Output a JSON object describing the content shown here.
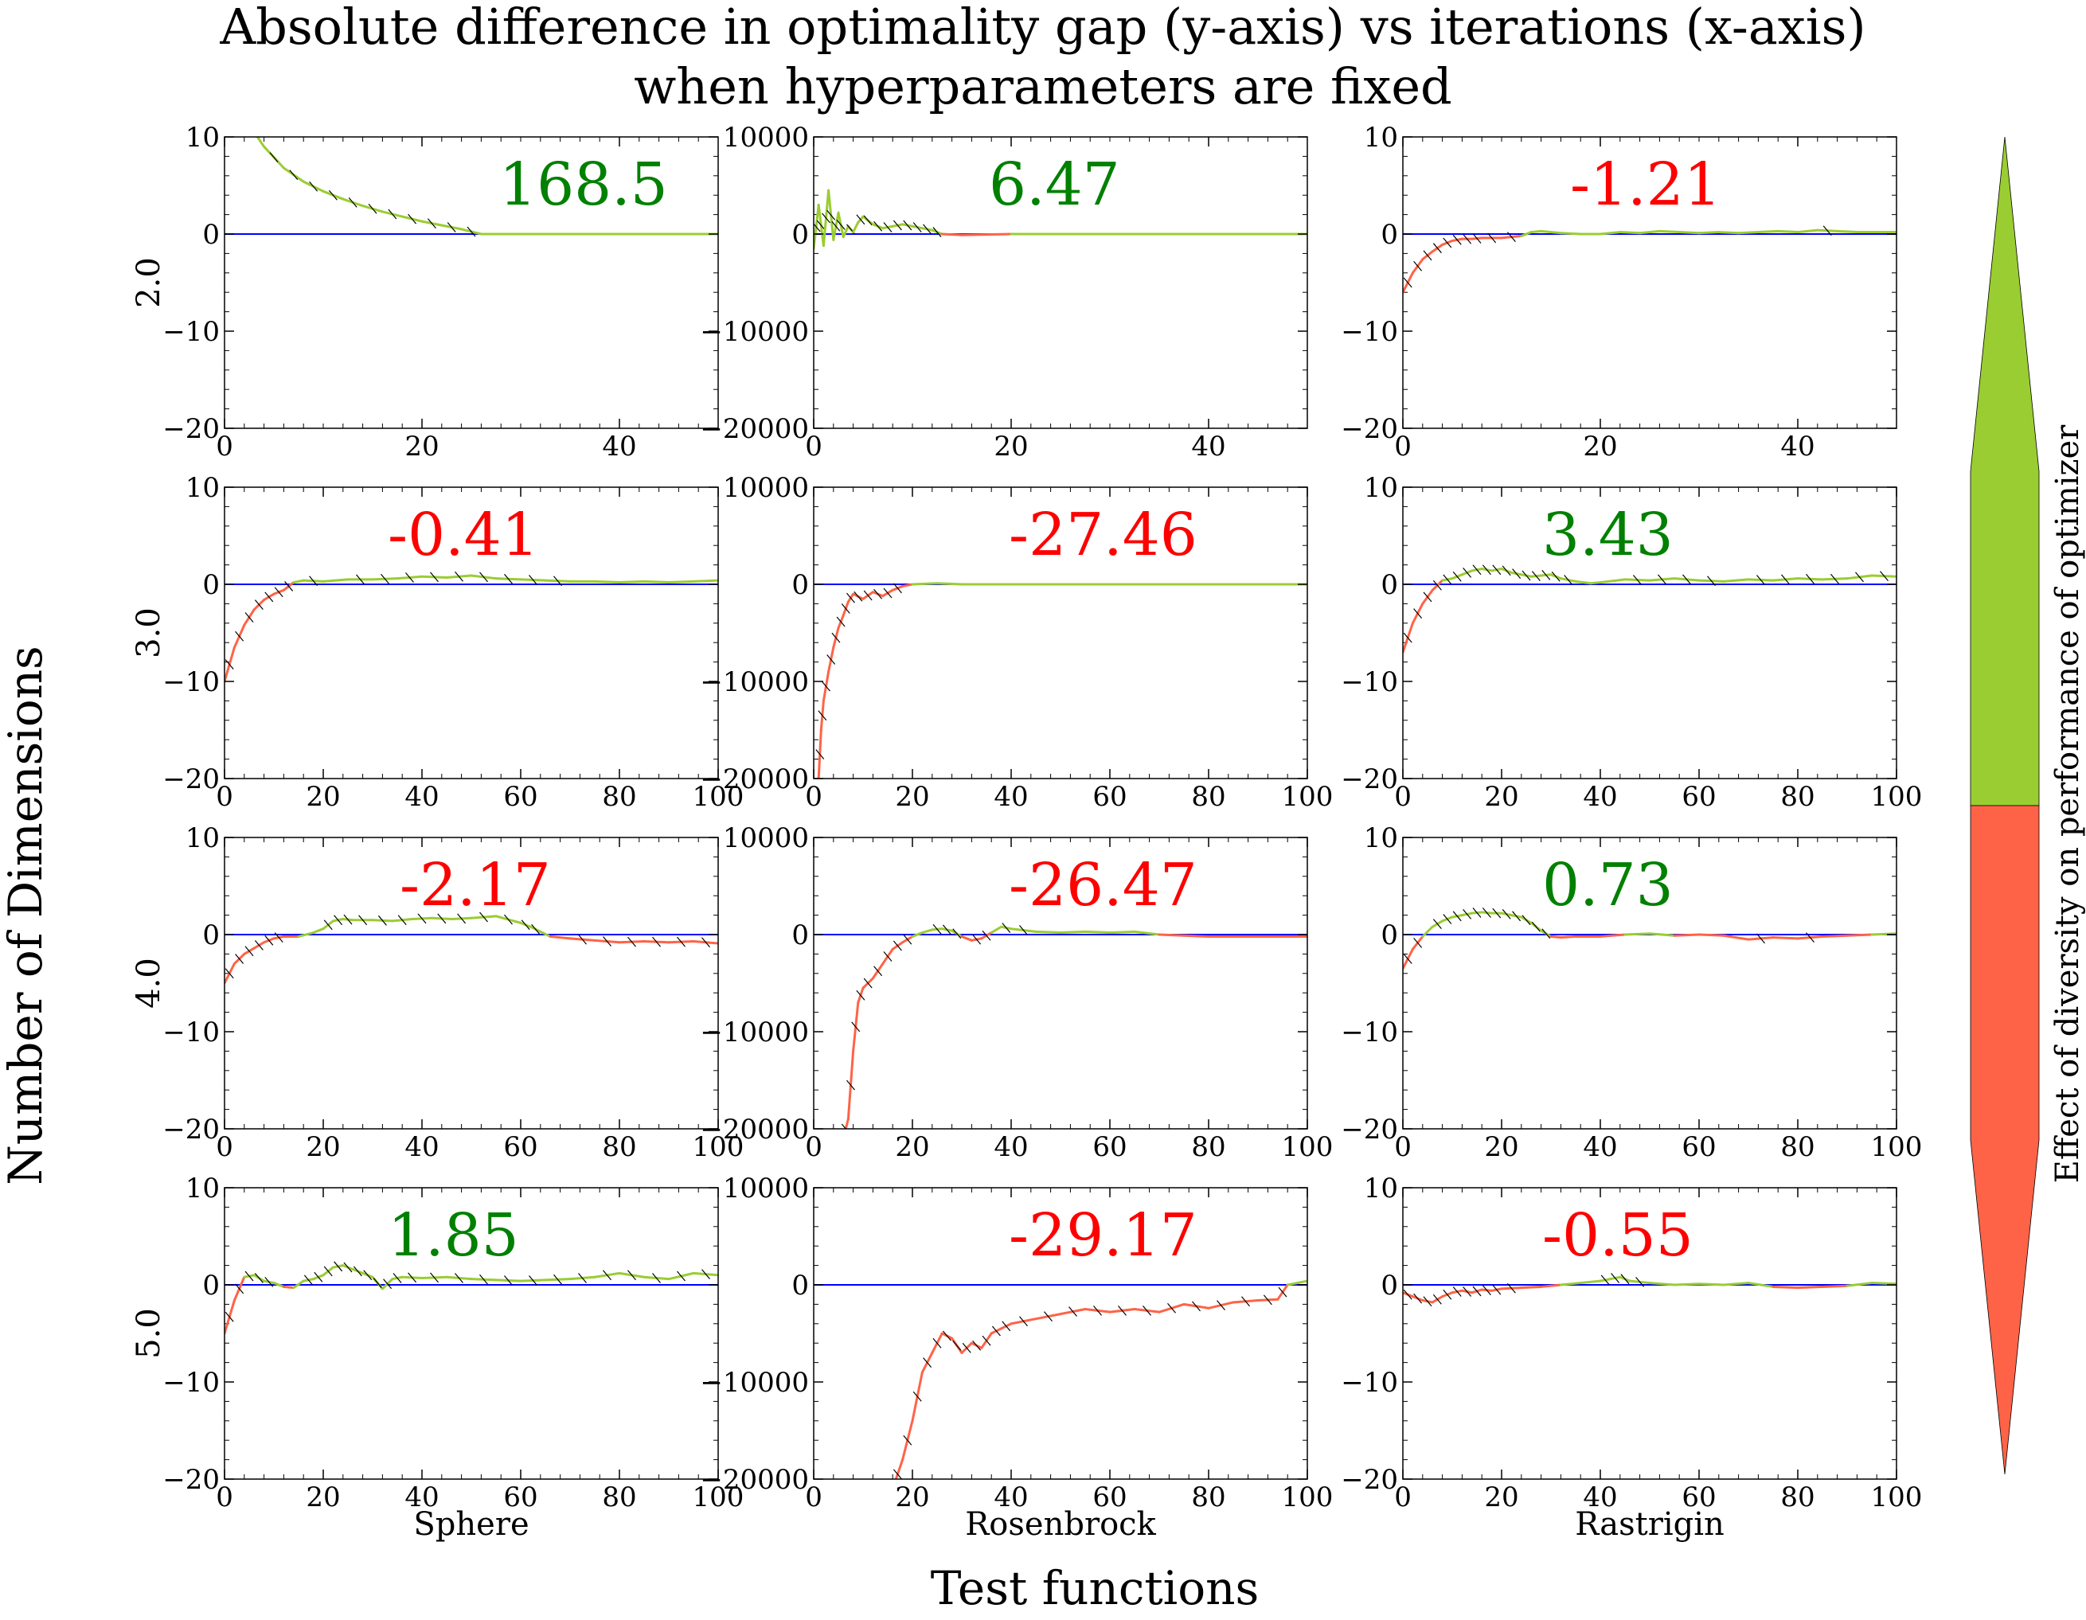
{
  "title_lines": [
    "Absolute difference in optimality gap (y-axis) vs iterations (x-axis)",
    "when hyperparameters are fixed"
  ],
  "xlabel": "Test functions",
  "ylabel": "Number of Dimensions",
  "colorbar_label": "Effect of diversity on performance of optimizer",
  "colors": {
    "positive": "#9ACD32",
    "negative": "#FF6347",
    "zero_line": "#0000FF",
    "positive_text": "#008000",
    "negative_text": "#FF0000",
    "hatch": "#000000"
  },
  "chart_data": {
    "type": "line",
    "layout": "grid 4 rows x 3 columns",
    "columns": [
      "Sphere",
      "Rosenbrock",
      "Rastrigin"
    ],
    "rows": [
      "2.0",
      "3.0",
      "4.0",
      "5.0"
    ],
    "panels": [
      {
        "row": 0,
        "col": 0,
        "value": "168.5",
        "sign": "positive",
        "xlim": [
          0,
          50
        ],
        "ylim": [
          -20,
          10
        ],
        "xticks": [
          0,
          20,
          40
        ],
        "yticks": [
          -20,
          -10,
          0,
          10
        ],
        "x": [
          0,
          2,
          4,
          6,
          8,
          10,
          12,
          14,
          16,
          18,
          20,
          22,
          24,
          26,
          50
        ],
        "y": [
          15,
          12,
          9,
          6.8,
          5.4,
          4.4,
          3.6,
          2.9,
          2.3,
          1.8,
          1.3,
          0.9,
          0.5,
          0,
          0
        ]
      },
      {
        "row": 0,
        "col": 1,
        "value": "6.47",
        "sign": "positive",
        "xlim": [
          0,
          50
        ],
        "ylim": [
          -20000,
          10000
        ],
        "xticks": [
          0,
          20,
          40
        ],
        "yticks": [
          -20000,
          -10000,
          0,
          10000
        ],
        "x": [
          0,
          0.5,
          1,
          1.5,
          2,
          2.5,
          3,
          3.5,
          4,
          4.5,
          5,
          6,
          7,
          8,
          9,
          10,
          11,
          12,
          13,
          15,
          20,
          30,
          40,
          50
        ],
        "y": [
          -1500,
          3000,
          -1200,
          4500,
          -600,
          2200,
          -300,
          800,
          200,
          1200,
          1800,
          1000,
          600,
          800,
          1000,
          800,
          600,
          400,
          0,
          -100,
          0,
          0,
          0,
          0
        ]
      },
      {
        "row": 0,
        "col": 2,
        "value": "-1.21",
        "sign": "negative",
        "xlim": [
          0,
          50
        ],
        "ylim": [
          -20,
          10
        ],
        "xticks": [
          0,
          20,
          40
        ],
        "yticks": [
          -20,
          -10,
          0,
          10
        ],
        "x": [
          0,
          1,
          2,
          3,
          4,
          5,
          6,
          7,
          8,
          10,
          12,
          13,
          14,
          16,
          18,
          20,
          22,
          24,
          26,
          28,
          30,
          32,
          34,
          36,
          38,
          40,
          42,
          44,
          46,
          50
        ],
        "y": [
          -6,
          -4,
          -2.6,
          -1.8,
          -1.1,
          -0.7,
          -0.5,
          -0.5,
          -0.4,
          -0.4,
          -0.2,
          0.2,
          0.3,
          0.1,
          0,
          0,
          0.2,
          0.1,
          0.3,
          0.2,
          0.1,
          0.2,
          0.1,
          0.2,
          0.3,
          0.2,
          0.4,
          0.3,
          0.2,
          0.2
        ]
      },
      {
        "row": 1,
        "col": 0,
        "value": "-0.41",
        "sign": "negative",
        "xlim": [
          0,
          100
        ],
        "ylim": [
          -20,
          10
        ],
        "xticks": [
          0,
          20,
          40,
          60,
          80,
          100
        ],
        "yticks": [
          -20,
          -10,
          0,
          10
        ],
        "x": [
          0,
          2,
          4,
          6,
          8,
          10,
          12,
          14,
          16,
          20,
          25,
          30,
          35,
          40,
          45,
          50,
          55,
          60,
          65,
          70,
          75,
          80,
          85,
          90,
          95,
          100
        ],
        "y": [
          -10,
          -6.5,
          -4.2,
          -2.6,
          -1.6,
          -1,
          -0.6,
          0.2,
          0.4,
          0.3,
          0.5,
          0.5,
          0.6,
          0.8,
          0.7,
          0.9,
          0.6,
          0.5,
          0.4,
          0.3,
          0.3,
          0.2,
          0.3,
          0.2,
          0.3,
          0.4
        ]
      },
      {
        "row": 1,
        "col": 1,
        "value": "-27.46",
        "sign": "negative",
        "xlim": [
          0,
          100
        ],
        "ylim": [
          -20000,
          10000
        ],
        "xticks": [
          0,
          20,
          40,
          60,
          80,
          100
        ],
        "yticks": [
          -20000,
          -10000,
          0,
          10000
        ],
        "x": [
          0,
          1,
          1.5,
          2,
          3,
          4,
          5,
          6,
          7,
          8,
          10,
          12,
          14,
          16,
          18,
          20,
          25,
          30,
          40,
          50,
          60,
          70,
          80,
          90,
          100
        ],
        "y": [
          -21000,
          -20000,
          -15000,
          -12000,
          -9000,
          -6500,
          -4500,
          -3200,
          -1800,
          -1000,
          -1500,
          -800,
          -1200,
          -600,
          -200,
          0,
          100,
          0,
          0,
          0,
          0,
          0,
          0,
          0,
          0
        ]
      },
      {
        "row": 1,
        "col": 2,
        "value": "3.43",
        "sign": "positive",
        "xlim": [
          0,
          100
        ],
        "ylim": [
          -20,
          10
        ],
        "xticks": [
          0,
          20,
          40,
          60,
          80,
          100
        ],
        "yticks": [
          -20,
          -10,
          0,
          10
        ],
        "x": [
          0,
          2,
          4,
          6,
          8,
          10,
          12,
          14,
          16,
          18,
          20,
          22,
          24,
          26,
          28,
          30,
          32,
          35,
          38,
          40,
          45,
          50,
          55,
          60,
          65,
          70,
          75,
          80,
          85,
          90,
          95,
          100
        ],
        "y": [
          -7,
          -4,
          -2,
          -0.6,
          0.4,
          0.6,
          1,
          1.4,
          1.6,
          1.4,
          1.6,
          1.2,
          1,
          0.8,
          0.9,
          1,
          0.6,
          0.3,
          0.1,
          0.2,
          0.5,
          0.4,
          0.6,
          0.4,
          0.3,
          0.5,
          0.4,
          0.6,
          0.5,
          0.6,
          0.9,
          0.8
        ]
      },
      {
        "row": 2,
        "col": 0,
        "value": "-2.17",
        "sign": "negative",
        "xlim": [
          0,
          100
        ],
        "ylim": [
          -20,
          10
        ],
        "xticks": [
          0,
          20,
          40,
          60,
          80,
          100
        ],
        "yticks": [
          -20,
          -10,
          0,
          10
        ],
        "x": [
          0,
          2,
          4,
          6,
          8,
          10,
          12,
          15,
          18,
          20,
          22,
          24,
          26,
          30,
          34,
          38,
          42,
          46,
          50,
          55,
          60,
          62,
          64,
          66,
          70,
          75,
          80,
          85,
          90,
          95,
          100
        ],
        "y": [
          -5,
          -3,
          -2,
          -1.4,
          -0.8,
          -0.4,
          -0.2,
          -0.2,
          0.2,
          0.6,
          1.4,
          1.6,
          1.5,
          1.5,
          1.4,
          1.6,
          1.7,
          1.6,
          1.7,
          1.9,
          1.2,
          0.8,
          0.3,
          -0.2,
          -0.4,
          -0.6,
          -0.8,
          -0.7,
          -0.8,
          -0.7,
          -0.9
        ]
      },
      {
        "row": 2,
        "col": 1,
        "value": "-26.47",
        "sign": "negative",
        "xlim": [
          0,
          100
        ],
        "ylim": [
          -20000,
          10000
        ],
        "xticks": [
          0,
          20,
          40,
          60,
          80,
          100
        ],
        "yticks": [
          -20000,
          -10000,
          0,
          10000
        ],
        "x": [
          0,
          6,
          7,
          8,
          9,
          10,
          12,
          14,
          16,
          18,
          20,
          22,
          24,
          26,
          28,
          30,
          32,
          34,
          36,
          38,
          40,
          45,
          50,
          55,
          60,
          65,
          70,
          75,
          80,
          90,
          100
        ],
        "y": [
          -21000,
          -21000,
          -19000,
          -12000,
          -7000,
          -5500,
          -4500,
          -3000,
          -1500,
          -800,
          -200,
          200,
          500,
          600,
          400,
          -200,
          -600,
          -400,
          200,
          800,
          600,
          300,
          200,
          300,
          200,
          300,
          0,
          -100,
          -200,
          -200,
          -200
        ]
      },
      {
        "row": 2,
        "col": 2,
        "value": "0.73",
        "sign": "positive",
        "xlim": [
          0,
          100
        ],
        "ylim": [
          -20,
          10
        ],
        "xticks": [
          0,
          20,
          40,
          60,
          80,
          100
        ],
        "yticks": [
          -20,
          -10,
          0,
          10
        ],
        "x": [
          0,
          2,
          4,
          6,
          8,
          10,
          12,
          14,
          16,
          18,
          20,
          22,
          24,
          26,
          28,
          30,
          32,
          35,
          40,
          45,
          50,
          55,
          60,
          65,
          70,
          75,
          80,
          85,
          90,
          95,
          100
        ],
        "y": [
          -3.5,
          -1.5,
          -0.2,
          0.8,
          1.4,
          1.8,
          2,
          2.2,
          2.3,
          2.2,
          2.2,
          2,
          1.8,
          1.2,
          0.4,
          -0.2,
          -0.3,
          -0.2,
          -0.2,
          0,
          0.1,
          -0.1,
          0,
          -0.1,
          -0.5,
          -0.3,
          -0.4,
          -0.2,
          -0.1,
          0,
          0.1
        ]
      },
      {
        "row": 3,
        "col": 0,
        "value": "1.85",
        "sign": "positive",
        "xlim": [
          0,
          100
        ],
        "ylim": [
          -20,
          10
        ],
        "xticks": [
          0,
          20,
          40,
          60,
          80,
          100
        ],
        "yticks": [
          -20,
          -10,
          0,
          10
        ],
        "x": [
          0,
          2,
          4,
          6,
          8,
          10,
          12,
          14,
          16,
          18,
          20,
          22,
          24,
          26,
          28,
          30,
          32,
          34,
          36,
          40,
          45,
          50,
          55,
          60,
          65,
          70,
          75,
          80,
          85,
          90,
          95,
          100
        ],
        "y": [
          -5,
          -1.6,
          0.8,
          1,
          0.4,
          0.2,
          -0.2,
          -0.3,
          0.4,
          0.6,
          1,
          1.8,
          2,
          1.6,
          1.2,
          0.8,
          -0.4,
          0.6,
          0.8,
          0.7,
          0.8,
          0.6,
          0.5,
          0.4,
          0.5,
          0.6,
          0.8,
          1.2,
          0.8,
          0.6,
          1.2,
          1
        ]
      },
      {
        "row": 3,
        "col": 1,
        "value": "-29.17",
        "sign": "negative",
        "xlim": [
          0,
          100
        ],
        "ylim": [
          -20000,
          10000
        ],
        "xticks": [
          0,
          20,
          40,
          60,
          80,
          100
        ],
        "yticks": [
          -20000,
          -10000,
          0,
          10000
        ],
        "x": [
          0,
          16,
          18,
          20,
          22,
          24,
          26,
          28,
          30,
          32,
          34,
          36,
          38,
          40,
          45,
          50,
          55,
          60,
          65,
          70,
          75,
          80,
          85,
          90,
          94,
          96,
          98,
          100
        ],
        "y": [
          -21000,
          -21000,
          -18000,
          -14000,
          -9000,
          -7000,
          -5000,
          -5500,
          -7000,
          -6000,
          -6500,
          -5000,
          -4500,
          -4000,
          -3500,
          -3000,
          -2500,
          -2800,
          -2500,
          -2800,
          -2000,
          -2400,
          -1800,
          -1600,
          -1500,
          0,
          200,
          400
        ]
      },
      {
        "row": 3,
        "col": 2,
        "value": "-0.55",
        "sign": "negative",
        "xlim": [
          0,
          100
        ],
        "ylim": [
          -20,
          10
        ],
        "xticks": [
          0,
          20,
          40,
          60,
          80,
          100
        ],
        "yticks": [
          -20,
          -10,
          0,
          10
        ],
        "x": [
          0,
          2,
          4,
          6,
          8,
          10,
          12,
          14,
          16,
          18,
          20,
          24,
          28,
          32,
          36,
          40,
          42,
          44,
          46,
          50,
          55,
          60,
          65,
          70,
          75,
          80,
          85,
          90,
          95,
          100
        ],
        "y": [
          -0.8,
          -1.2,
          -1.6,
          -1.8,
          -1.2,
          -0.8,
          -0.6,
          -0.8,
          -0.5,
          -0.6,
          -0.4,
          -0.3,
          -0.2,
          0,
          0.2,
          0.4,
          0.6,
          0.8,
          0.4,
          0.2,
          0,
          0.1,
          0,
          0.2,
          -0.2,
          -0.3,
          -0.2,
          -0.1,
          0.2,
          0.1
        ]
      }
    ]
  }
}
